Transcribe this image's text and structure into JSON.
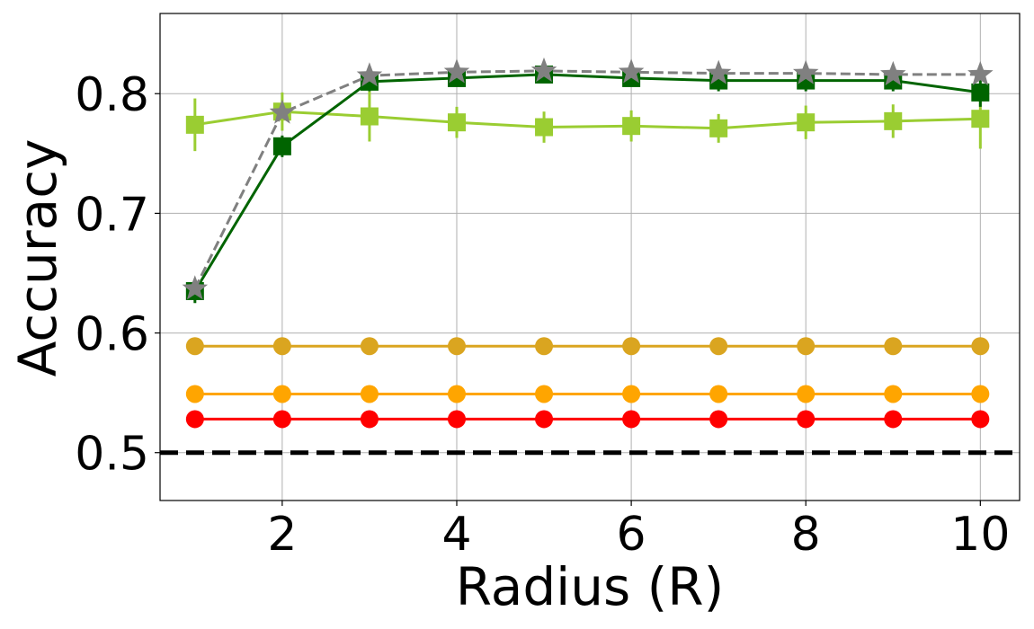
{
  "chart_data": {
    "type": "line",
    "title": "",
    "xlabel": "Radius (R)",
    "ylabel": "Accuracy",
    "xlim": [
      0.6,
      10.45
    ],
    "ylim": [
      0.46,
      0.867
    ],
    "xticks": [
      2,
      4,
      6,
      8,
      10
    ],
    "xtick_labels": [
      "2",
      "4",
      "6",
      "8",
      "10"
    ],
    "yticks": [
      0.5,
      0.6,
      0.7,
      0.8
    ],
    "ytick_labels": [
      "0.5",
      "0.6",
      "0.7",
      "0.8"
    ],
    "grid": true,
    "legend": "none",
    "x": [
      1,
      2,
      3,
      4,
      5,
      6,
      7,
      8,
      9,
      10
    ],
    "series": [
      {
        "color": "#808080",
        "marker": "star",
        "linestyle": "dashed",
        "values": [
          0.637,
          0.784,
          0.815,
          0.818,
          0.819,
          0.818,
          0.817,
          0.817,
          0.816,
          0.816
        ],
        "errors": [
          0,
          0,
          0,
          0,
          0,
          0,
          0,
          0,
          0,
          0
        ]
      },
      {
        "color": "#006400",
        "marker": "square",
        "linestyle": "solid",
        "values": [
          0.635,
          0.756,
          0.81,
          0.813,
          0.816,
          0.813,
          0.811,
          0.811,
          0.811,
          0.801
        ],
        "errors": [
          0.01,
          0.009,
          0.008,
          0.007,
          0.006,
          0.007,
          0.009,
          0.009,
          0.009,
          0.012
        ]
      },
      {
        "color": "#9ACD32",
        "marker": "square",
        "linestyle": "solid",
        "values": [
          0.774,
          0.785,
          0.781,
          0.776,
          0.772,
          0.773,
          0.771,
          0.776,
          0.777,
          0.779
        ],
        "errors": [
          0.022,
          0.016,
          0.021,
          0.013,
          0.013,
          0.013,
          0.012,
          0.014,
          0.014,
          0.025
        ]
      },
      {
        "color": "#DAA520",
        "marker": "circle",
        "linestyle": "solid",
        "values": [
          0.589,
          0.589,
          0.589,
          0.589,
          0.589,
          0.589,
          0.589,
          0.589,
          0.589,
          0.589
        ],
        "errors": [
          0,
          0,
          0,
          0,
          0,
          0,
          0,
          0,
          0,
          0
        ]
      },
      {
        "color": "#FFA500",
        "marker": "circle",
        "linestyle": "solid",
        "values": [
          0.549,
          0.549,
          0.549,
          0.549,
          0.549,
          0.549,
          0.549,
          0.549,
          0.549,
          0.549
        ],
        "errors": [
          0,
          0,
          0,
          0,
          0,
          0,
          0,
          0,
          0,
          0
        ]
      },
      {
        "color": "#FF0000",
        "marker": "circle",
        "linestyle": "solid",
        "values": [
          0.528,
          0.528,
          0.528,
          0.528,
          0.528,
          0.528,
          0.528,
          0.528,
          0.528,
          0.528
        ],
        "errors": [
          0,
          0,
          0,
          0,
          0,
          0,
          0,
          0,
          0,
          0
        ]
      }
    ],
    "reference_lines": [
      {
        "y": 0.5,
        "color": "#000000",
        "linestyle": "dashed"
      }
    ]
  }
}
